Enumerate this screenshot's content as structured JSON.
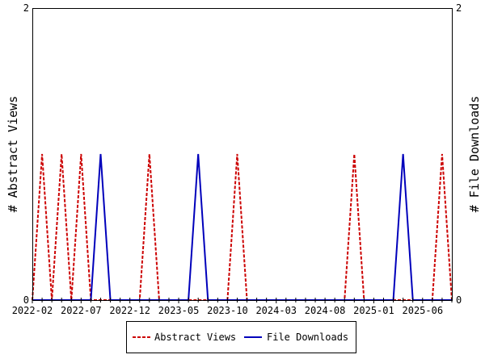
{
  "chart_data": {
    "type": "line",
    "title": "",
    "x_start": "2022-02",
    "x_tick_labels": [
      "2022-02",
      "2022-07",
      "2022-12",
      "2023-05",
      "2023-10",
      "2024-03",
      "2024-08",
      "2025-01",
      "2025-06"
    ],
    "ylabel_left": "# Abstract Views",
    "ylabel_right": "# File Downloads",
    "ylim": [
      0,
      2
    ],
    "y_tick_labels": [
      "0",
      "2"
    ],
    "legend_placement": "bottom",
    "series": [
      {
        "name": "Abstract Views",
        "color": "#cc0000",
        "style": "dashed",
        "axis": "left",
        "values": [
          0,
          1,
          0,
          1,
          0,
          1,
          0,
          0,
          0,
          0,
          0,
          0,
          1,
          0,
          0,
          0,
          0,
          0,
          0,
          0,
          0,
          1,
          0,
          0,
          0,
          0,
          0,
          0,
          0,
          0,
          0,
          0,
          0,
          1,
          0,
          0,
          0,
          0,
          0,
          0,
          0,
          0,
          1,
          0
        ]
      },
      {
        "name": "File Downloads",
        "color": "#0000bb",
        "style": "solid",
        "axis": "right",
        "values": [
          0,
          0,
          0,
          0,
          0,
          0,
          0,
          1,
          0,
          0,
          0,
          0,
          0,
          0,
          0,
          0,
          0,
          1,
          0,
          0,
          0,
          0,
          0,
          0,
          0,
          0,
          0,
          0,
          0,
          0,
          0,
          0,
          0,
          0,
          0,
          0,
          0,
          0,
          1,
          0,
          0,
          0,
          0,
          0
        ]
      }
    ]
  }
}
